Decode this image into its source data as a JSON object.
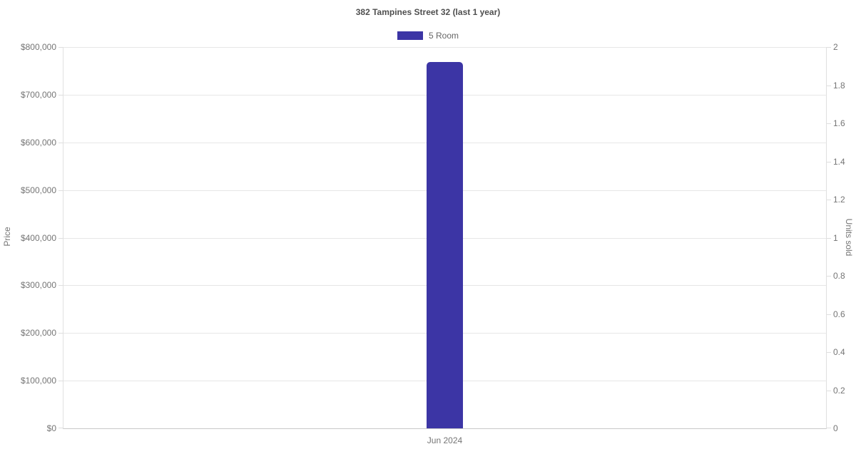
{
  "chart_data": {
    "type": "bar",
    "title": "382 Tampines Street 32 (last 1 year)",
    "categories": [
      "Jun 2024"
    ],
    "series": [
      {
        "name": "5 Room",
        "color": "#3c35a5",
        "axis": "left",
        "values": [
          768000
        ]
      }
    ],
    "legend": {
      "position": "top",
      "items": [
        {
          "label": "5 Room",
          "color": "#3c35a5"
        }
      ]
    },
    "left_axis": {
      "label": "Price",
      "min": 0,
      "max": 800000,
      "tick_step": 100000,
      "tick_labels": [
        "$0",
        "$100,000",
        "$200,000",
        "$300,000",
        "$400,000",
        "$500,000",
        "$600,000",
        "$700,000",
        "$800,000"
      ]
    },
    "right_axis": {
      "label": "Units sold",
      "min": 0,
      "max": 2,
      "tick_step": 0.2,
      "tick_labels": [
        "0",
        "0.2",
        "0.4",
        "0.6",
        "0.8",
        "1",
        "1.2",
        "1.4",
        "1.6",
        "1.8",
        "2"
      ]
    },
    "grid": true,
    "colors": {
      "bar": "#3c35a5",
      "gridline": "#e6e6e6",
      "axis_line": "#e0e0e0",
      "bottom_axis_line": "#c9c9c9",
      "tick_text": "#757575",
      "title_text": "#4f4f4f",
      "legend_text": "#666666",
      "background": "#ffffff"
    }
  }
}
